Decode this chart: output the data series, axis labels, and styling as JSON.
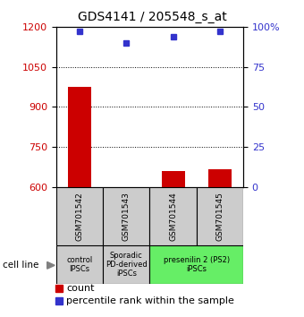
{
  "title": "GDS4141 / 205548_s_at",
  "samples": [
    "GSM701542",
    "GSM701543",
    "GSM701544",
    "GSM701545"
  ],
  "counts": [
    975,
    601,
    660,
    665
  ],
  "percentile_ranks": [
    97,
    90,
    94,
    97
  ],
  "ymin": 600,
  "ymax": 1200,
  "yticks": [
    600,
    750,
    900,
    1050,
    1200
  ],
  "y2ticks": [
    0,
    25,
    50,
    75,
    100
  ],
  "bar_color": "#cc0000",
  "dot_color": "#3333cc",
  "groups": [
    {
      "label": "control\nIPSCs",
      "start": 0,
      "end": 1,
      "color": "#cccccc"
    },
    {
      "label": "Sporadic\nPD-derived\niPSCs",
      "start": 1,
      "end": 2,
      "color": "#cccccc"
    },
    {
      "label": "presenilin 2 (PS2)\niPSCs",
      "start": 2,
      "end": 4,
      "color": "#66ee66"
    }
  ],
  "cell_line_label": "cell line",
  "legend_count_label": "count",
  "legend_pct_label": "percentile rank within the sample",
  "grid_yticks": [
    750,
    900,
    1050
  ],
  "left_color": "#cc0000",
  "right_color": "#3333cc",
  "title_fontsize": 10,
  "tick_fontsize": 8,
  "bar_width": 0.5
}
